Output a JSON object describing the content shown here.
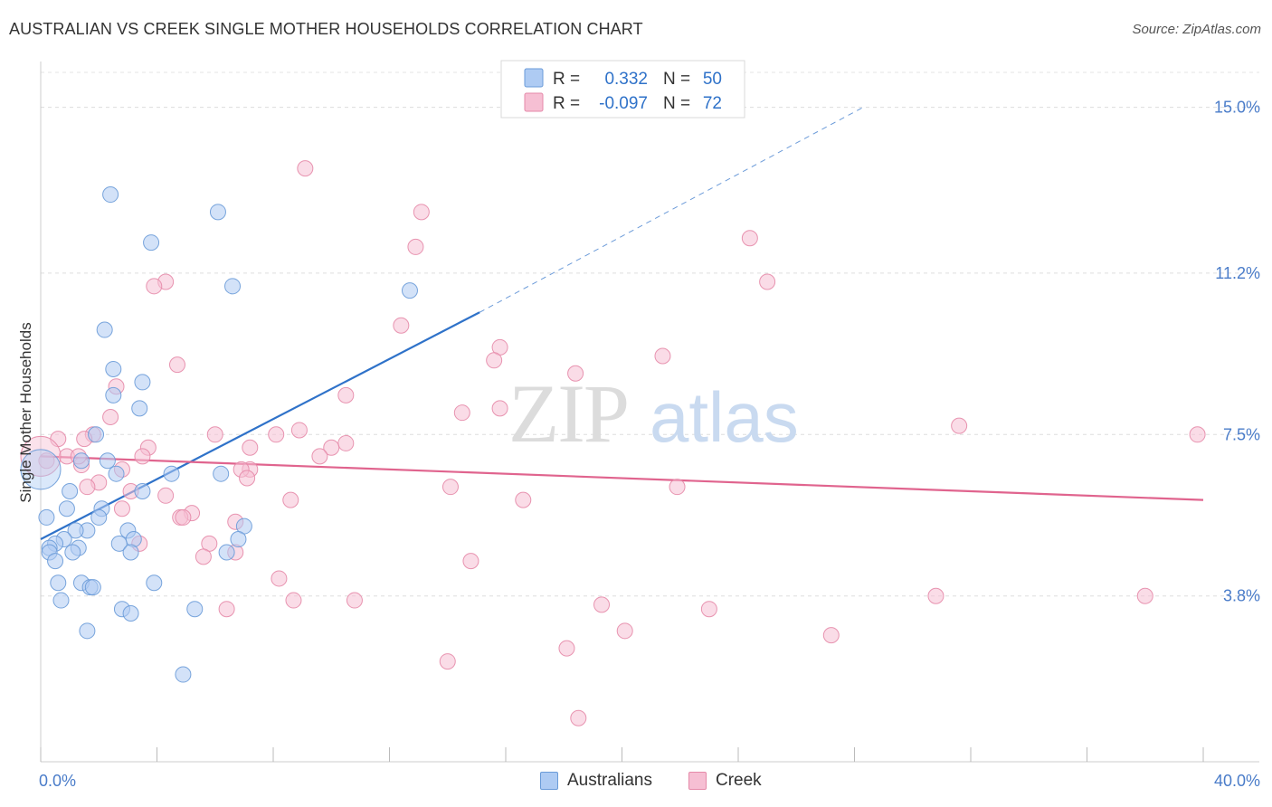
{
  "header": {
    "title": "AUSTRALIAN VS CREEK SINGLE MOTHER HOUSEHOLDS CORRELATION CHART",
    "source": "Source: ZipAtlas.com"
  },
  "watermark": {
    "zip": "ZIP",
    "atlas": "atlas"
  },
  "colors": {
    "australians_fill": "#aecbf3",
    "australians_stroke": "#6a9bd8",
    "australians_line": "#2f72c9",
    "creek_fill": "#f6bfd3",
    "creek_stroke": "#e58aa9",
    "creek_line": "#e0648e",
    "tick_label": "#4a7cc9"
  },
  "stats_legend": [
    {
      "r_label": "R =",
      "r_value": "0.332",
      "n_label": "N =",
      "n_value": "50"
    },
    {
      "r_label": "R =",
      "r_value": "-0.097",
      "n_label": "N =",
      "n_value": "72"
    }
  ],
  "bottom_legend": [
    "Australians",
    "Creek"
  ],
  "chart_data": {
    "type": "scatter",
    "ylabel": "Single Mother Households",
    "xlim": [
      0,
      40
    ],
    "ylim": [
      0,
      15.8
    ],
    "x_tick_labels": [
      {
        "value": 0,
        "label": "0.0%"
      },
      {
        "value": 40,
        "label": "40.0%"
      }
    ],
    "y_tick_labels": [
      {
        "value": 3.8,
        "label": "3.8%"
      },
      {
        "value": 7.5,
        "label": "7.5%"
      },
      {
        "value": 11.2,
        "label": "11.2%"
      },
      {
        "value": 15.0,
        "label": "15.0%"
      }
    ],
    "grid": true,
    "series": [
      {
        "name": "Australians",
        "points": [
          [
            2.4,
            13.0
          ],
          [
            6.1,
            12.6
          ],
          [
            3.8,
            11.9
          ],
          [
            6.6,
            10.9
          ],
          [
            12.7,
            10.8
          ],
          [
            2.2,
            9.9
          ],
          [
            2.5,
            9.0
          ],
          [
            3.5,
            8.7
          ],
          [
            2.5,
            8.4
          ],
          [
            3.4,
            8.1
          ],
          [
            1.9,
            7.5
          ],
          [
            1.4,
            6.9
          ],
          [
            2.3,
            6.9
          ],
          [
            4.5,
            6.6
          ],
          [
            2.6,
            6.6
          ],
          [
            6.2,
            6.6
          ],
          [
            1.0,
            6.2
          ],
          [
            3.5,
            6.2
          ],
          [
            0.9,
            5.8
          ],
          [
            2.1,
            5.8
          ],
          [
            0.2,
            5.6
          ],
          [
            2.0,
            5.6
          ],
          [
            1.6,
            5.3
          ],
          [
            7.0,
            5.4
          ],
          [
            1.2,
            5.3
          ],
          [
            3.0,
            5.3
          ],
          [
            6.8,
            5.1
          ],
          [
            0.8,
            5.1
          ],
          [
            3.2,
            5.1
          ],
          [
            0.5,
            5.0
          ],
          [
            2.7,
            5.0
          ],
          [
            1.3,
            4.9
          ],
          [
            0.3,
            4.9
          ],
          [
            1.1,
            4.8
          ],
          [
            3.1,
            4.8
          ],
          [
            6.4,
            4.8
          ],
          [
            0.3,
            4.8
          ],
          [
            0.5,
            4.6
          ],
          [
            0.6,
            4.1
          ],
          [
            1.4,
            4.1
          ],
          [
            3.9,
            4.1
          ],
          [
            1.7,
            4.0
          ],
          [
            1.8,
            4.0
          ],
          [
            0.7,
            3.7
          ],
          [
            5.3,
            3.5
          ],
          [
            2.8,
            3.5
          ],
          [
            3.1,
            3.4
          ],
          [
            1.6,
            3.0
          ],
          [
            4.9,
            2.0
          ],
          [
            0.0,
            6.7
          ]
        ]
      },
      {
        "name": "Creek",
        "points": [
          [
            9.1,
            13.6
          ],
          [
            13.1,
            12.6
          ],
          [
            12.9,
            11.8
          ],
          [
            24.4,
            12.0
          ],
          [
            25.0,
            11.0
          ],
          [
            4.3,
            11.0
          ],
          [
            3.9,
            10.9
          ],
          [
            12.4,
            10.0
          ],
          [
            15.8,
            9.5
          ],
          [
            15.6,
            9.2
          ],
          [
            21.4,
            9.3
          ],
          [
            18.4,
            8.9
          ],
          [
            4.7,
            9.1
          ],
          [
            2.6,
            8.6
          ],
          [
            10.5,
            8.4
          ],
          [
            15.8,
            8.1
          ],
          [
            14.5,
            8.0
          ],
          [
            2.4,
            7.9
          ],
          [
            31.6,
            7.7
          ],
          [
            8.9,
            7.6
          ],
          [
            6.0,
            7.5
          ],
          [
            8.1,
            7.5
          ],
          [
            1.8,
            7.5
          ],
          [
            0.6,
            7.4
          ],
          [
            39.8,
            7.5
          ],
          [
            10.5,
            7.3
          ],
          [
            10.0,
            7.2
          ],
          [
            7.2,
            7.2
          ],
          [
            3.7,
            7.2
          ],
          [
            9.6,
            7.0
          ],
          [
            3.5,
            7.0
          ],
          [
            0.2,
            6.9
          ],
          [
            1.4,
            6.8
          ],
          [
            7.2,
            6.7
          ],
          [
            6.9,
            6.7
          ],
          [
            2.8,
            6.7
          ],
          [
            7.1,
            6.5
          ],
          [
            2.0,
            6.4
          ],
          [
            1.6,
            6.3
          ],
          [
            14.1,
            6.3
          ],
          [
            21.9,
            6.3
          ],
          [
            3.1,
            6.2
          ],
          [
            4.3,
            6.1
          ],
          [
            8.6,
            6.0
          ],
          [
            16.6,
            6.0
          ],
          [
            2.8,
            5.8
          ],
          [
            5.2,
            5.7
          ],
          [
            4.8,
            5.6
          ],
          [
            4.9,
            5.6
          ],
          [
            6.7,
            5.5
          ],
          [
            3.4,
            5.0
          ],
          [
            5.8,
            5.0
          ],
          [
            6.7,
            4.8
          ],
          [
            5.6,
            4.7
          ],
          [
            14.8,
            4.6
          ],
          [
            8.2,
            4.2
          ],
          [
            8.7,
            3.7
          ],
          [
            10.8,
            3.7
          ],
          [
            30.8,
            3.8
          ],
          [
            38.0,
            3.8
          ],
          [
            19.3,
            3.6
          ],
          [
            23.0,
            3.5
          ],
          [
            6.4,
            3.5
          ],
          [
            20.1,
            3.0
          ],
          [
            27.2,
            2.9
          ],
          [
            18.1,
            2.6
          ],
          [
            14.0,
            2.3
          ],
          [
            18.5,
            1.0
          ],
          [
            0.9,
            7.0
          ],
          [
            1.3,
            7.0
          ],
          [
            1.5,
            7.4
          ],
          [
            0.0,
            7.0
          ]
        ]
      }
    ],
    "trend_lines": [
      {
        "series": "Australians",
        "from": [
          0,
          5.1
        ],
        "to": [
          15.1,
          10.3
        ],
        "dashed_to": [
          28.3,
          15.0
        ]
      },
      {
        "series": "Creek",
        "from": [
          0,
          7.0
        ],
        "to": [
          40,
          6.0
        ]
      }
    ]
  }
}
